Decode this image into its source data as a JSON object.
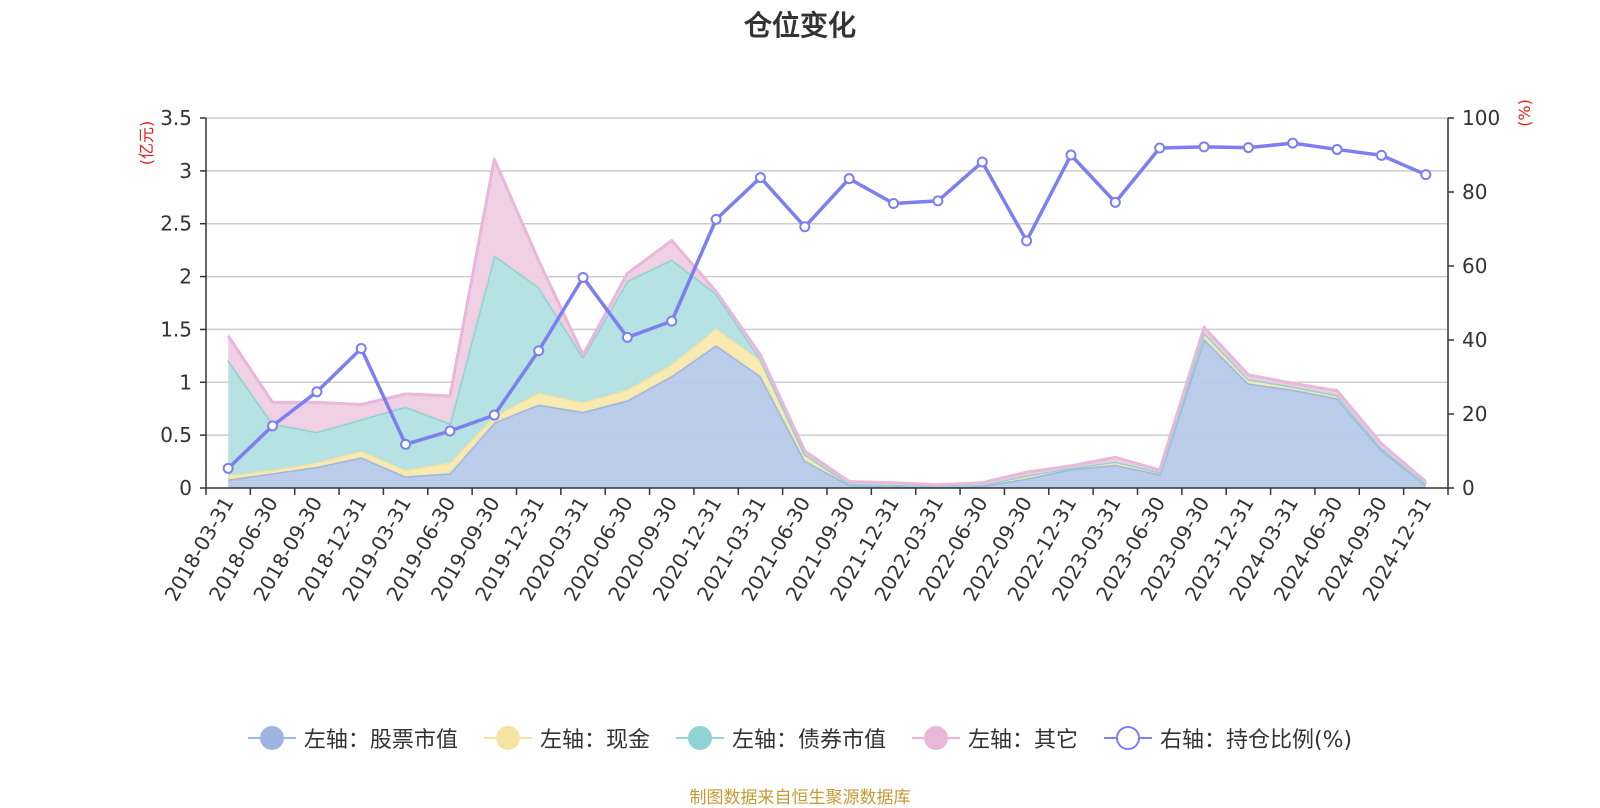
{
  "page": {
    "title": "仓位变化",
    "source_note": "制图数据来自恒生聚源数据库"
  },
  "chart_data": {
    "type": "area",
    "title": "仓位变化",
    "x": [
      "2018-03-31",
      "2018-06-30",
      "2018-09-30",
      "2018-12-31",
      "2019-03-31",
      "2019-06-30",
      "2019-09-30",
      "2019-12-31",
      "2020-03-31",
      "2020-06-30",
      "2020-09-30",
      "2020-12-31",
      "2021-03-31",
      "2021-06-30",
      "2021-09-30",
      "2021-12-31",
      "2022-03-31",
      "2022-06-30",
      "2022-09-30",
      "2022-12-31",
      "2023-03-31",
      "2023-06-30",
      "2023-09-30",
      "2023-12-31",
      "2024-03-31",
      "2024-06-30",
      "2024-09-30",
      "2024-12-31"
    ],
    "left_axis": {
      "label": "(亿元)",
      "ylim": [
        0,
        3.5
      ],
      "ticks": [
        "0",
        "0.5",
        "1",
        "1.5",
        "2",
        "2.5",
        "3",
        "3.5"
      ]
    },
    "right_axis": {
      "label": "(%)",
      "ylim": [
        0,
        100
      ],
      "ticks": [
        "0",
        "20",
        "40",
        "60",
        "80",
        "100"
      ]
    },
    "grid": true,
    "legend_position": "bottom",
    "stacked_series": [
      {
        "name": "左轴：股票市值",
        "color": "#9db6e0",
        "fill": "#b6c9e8",
        "values": [
          0.08,
          0.14,
          0.2,
          0.29,
          0.11,
          0.14,
          0.62,
          0.79,
          0.72,
          0.83,
          1.06,
          1.35,
          1.06,
          0.26,
          0.03,
          0.02,
          0.01,
          0.02,
          0.09,
          0.18,
          0.22,
          0.13,
          1.41,
          0.99,
          0.93,
          0.85,
          0.36,
          0.03
        ]
      },
      {
        "name": "左轴：现金",
        "color": "#f5e3a1",
        "fill": "#f8e9ad",
        "values": [
          0.04,
          0.03,
          0.04,
          0.06,
          0.06,
          0.1,
          0.06,
          0.11,
          0.09,
          0.1,
          0.11,
          0.16,
          0.15,
          0.06,
          0.01,
          0.01,
          0.01,
          0.01,
          0.03,
          0.01,
          0.03,
          0.02,
          0.06,
          0.04,
          0.03,
          0.03,
          0.02,
          0.01
        ]
      },
      {
        "name": "左轴：债券市值",
        "color": "#8fd3d3",
        "fill": "#b3e0e1",
        "values": [
          1.09,
          0.44,
          0.29,
          0.3,
          0.6,
          0.37,
          1.52,
          1.0,
          0.43,
          1.03,
          0.99,
          0.33,
          0.01,
          0.0,
          0.0,
          0.0,
          0.0,
          0.0,
          0.0,
          0.0,
          0.0,
          0.0,
          0.0,
          0.0,
          0.0,
          0.0,
          0.0,
          0.0
        ]
      },
      {
        "name": "左轴：其它",
        "color": "#e8b7d9",
        "fill": "#efcde4",
        "values": [
          0.23,
          0.2,
          0.28,
          0.14,
          0.12,
          0.26,
          0.91,
          0.25,
          0.02,
          0.07,
          0.18,
          0.02,
          0.04,
          0.03,
          0.02,
          0.02,
          0.01,
          0.02,
          0.03,
          0.02,
          0.04,
          0.02,
          0.05,
          0.04,
          0.03,
          0.04,
          0.04,
          0.02
        ]
      }
    ],
    "line_series": {
      "name": "右轴：持仓比例(%)",
      "color": "#7b7ff0",
      "axis": "right",
      "values": [
        5.3,
        16.8,
        26.0,
        37.7,
        11.8,
        15.4,
        19.7,
        37.1,
        56.9,
        40.7,
        45.1,
        72.6,
        83.9,
        70.6,
        83.6,
        76.9,
        77.6,
        88.1,
        66.8,
        90.0,
        77.2,
        91.9,
        92.2,
        92.0,
        93.2,
        91.5,
        89.9,
        84.7
      ]
    }
  }
}
